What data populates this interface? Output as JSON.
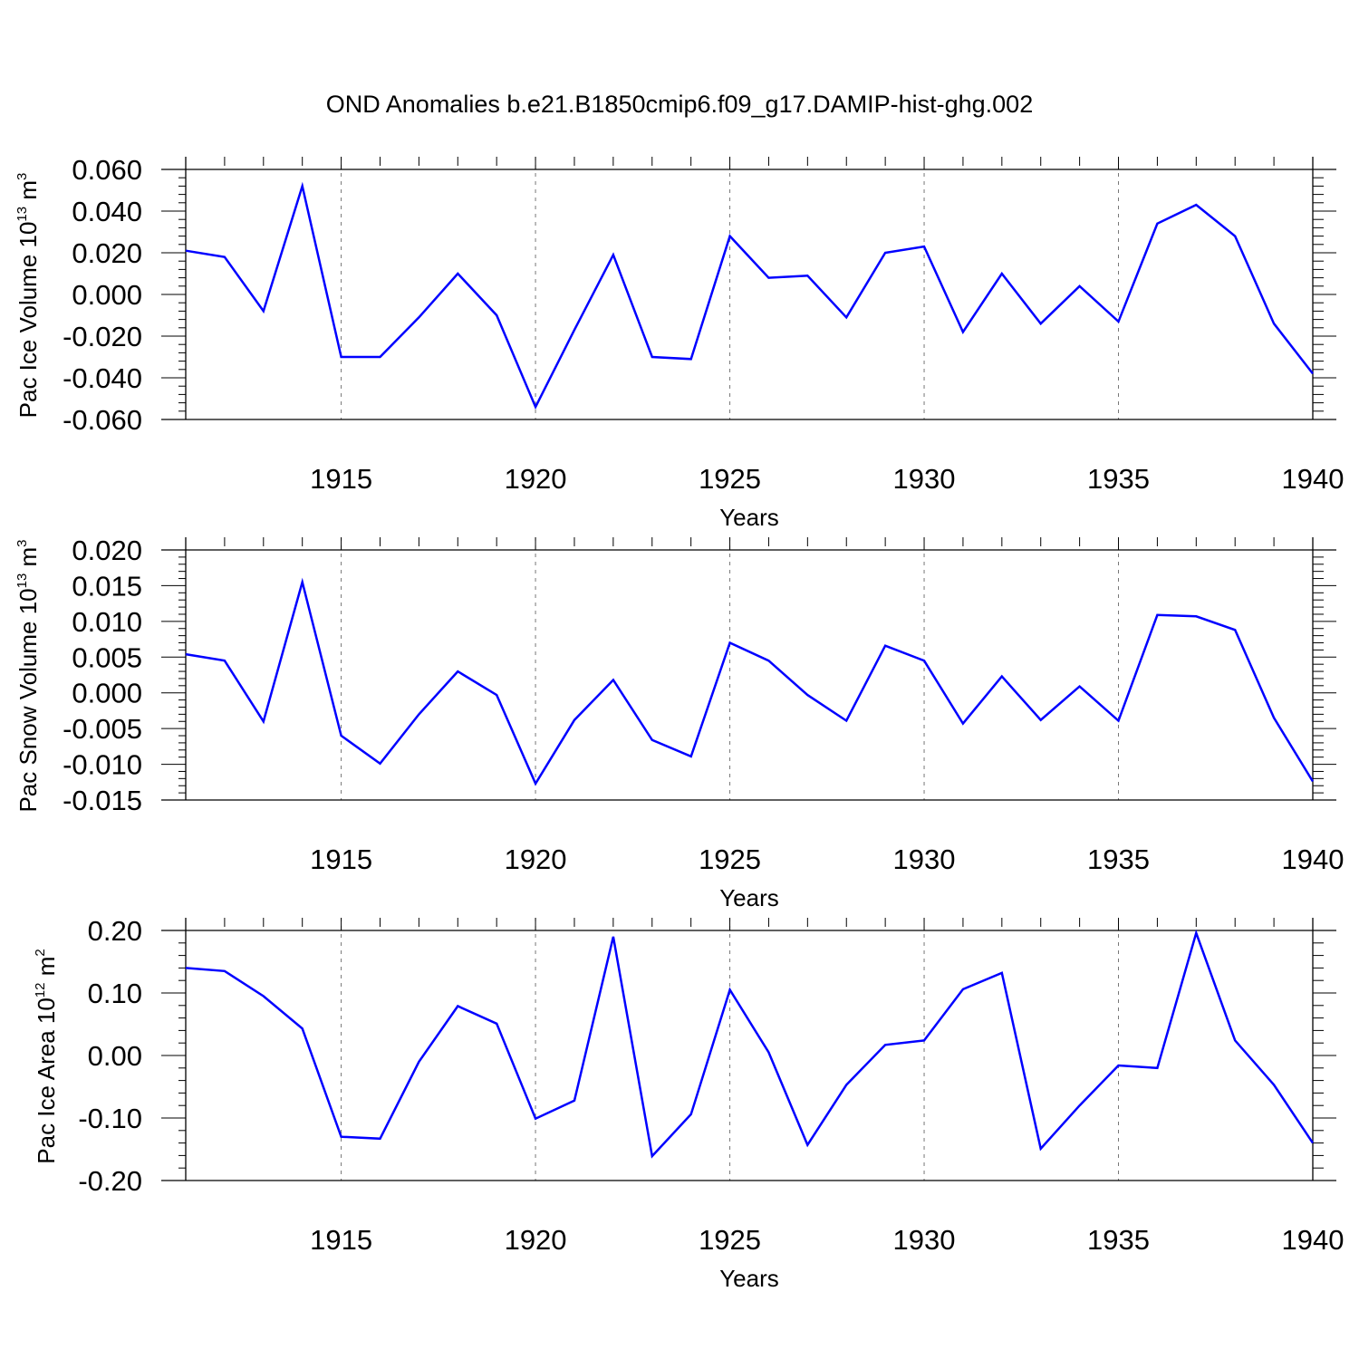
{
  "title": "OND Anomalies b.e21.B1850cmip6.f09_g17.DAMIP-hist-ghg.002",
  "chart_data": [
    {
      "type": "line",
      "ylabel": "Pac Ice Volume 10",
      "ylabel_exp": "13",
      "ylabel_unit": " m",
      "ylabel_unit_exp": "3",
      "xlabel": "Years",
      "xlim": [
        1911,
        1940
      ],
      "ylim": [
        -0.06,
        0.06
      ],
      "yticks": [
        -0.06,
        -0.04,
        -0.02,
        0.0,
        0.02,
        0.04,
        0.06
      ],
      "ytick_labels": [
        "-0.060",
        "-0.040",
        "-0.020",
        "0.000",
        "0.020",
        "0.040",
        "0.060"
      ],
      "xticks": [
        1915,
        1920,
        1925,
        1930,
        1935,
        1940
      ],
      "xtick_labels": [
        "1915",
        "1920",
        "1925",
        "1930",
        "1935",
        "1940"
      ],
      "gridlines_x": [
        1915,
        1920,
        1925,
        1930,
        1935
      ],
      "line_color": "#0000ff",
      "x": [
        1911,
        1912,
        1913,
        1914,
        1915,
        1916,
        1917,
        1918,
        1919,
        1920,
        1921,
        1922,
        1923,
        1924,
        1925,
        1926,
        1927,
        1928,
        1929,
        1930,
        1931,
        1932,
        1933,
        1934,
        1935,
        1936,
        1937,
        1938,
        1939,
        1940
      ],
      "values": [
        0.021,
        0.018,
        -0.008,
        0.052,
        -0.03,
        -0.03,
        -0.011,
        0.01,
        -0.01,
        -0.054,
        -0.017,
        0.019,
        -0.03,
        -0.031,
        0.028,
        0.008,
        0.009,
        -0.011,
        0.02,
        0.023,
        -0.018,
        0.01,
        -0.014,
        0.004,
        -0.013,
        0.034,
        0.043,
        0.028,
        -0.014,
        -0.038
      ]
    },
    {
      "type": "line",
      "ylabel": "Pac Snow Volume 10",
      "ylabel_exp": "13",
      "ylabel_unit": " m",
      "ylabel_unit_exp": "3",
      "xlabel": "Years",
      "xlim": [
        1911,
        1940
      ],
      "ylim": [
        -0.015,
        0.02
      ],
      "yticks": [
        -0.015,
        -0.01,
        -0.005,
        0.0,
        0.005,
        0.01,
        0.015,
        0.02
      ],
      "ytick_labels": [
        "-0.015",
        "-0.010",
        "-0.005",
        "0.000",
        "0.005",
        "0.010",
        "0.015",
        "0.020"
      ],
      "xticks": [
        1915,
        1920,
        1925,
        1930,
        1935,
        1940
      ],
      "xtick_labels": [
        "1915",
        "1920",
        "1925",
        "1930",
        "1935",
        "1940"
      ],
      "gridlines_x": [
        1915,
        1920,
        1925,
        1930,
        1935
      ],
      "line_color": "#0000ff",
      "x": [
        1911,
        1912,
        1913,
        1914,
        1915,
        1916,
        1917,
        1918,
        1919,
        1920,
        1921,
        1922,
        1923,
        1924,
        1925,
        1926,
        1927,
        1928,
        1929,
        1930,
        1931,
        1932,
        1933,
        1934,
        1935,
        1936,
        1937,
        1938,
        1939,
        1940
      ],
      "values": [
        0.0054,
        0.0045,
        -0.004,
        0.0155,
        -0.006,
        -0.0099,
        -0.003,
        0.003,
        -0.0003,
        -0.0127,
        -0.0038,
        0.0018,
        -0.0066,
        -0.0089,
        0.007,
        0.0045,
        -0.0003,
        -0.0039,
        0.0066,
        0.0045,
        -0.0043,
        0.0023,
        -0.0038,
        0.0009,
        -0.0039,
        0.0109,
        0.0107,
        0.0088,
        -0.0035,
        -0.0124
      ]
    },
    {
      "type": "line",
      "ylabel": "Pac Ice Area 10",
      "ylabel_exp": "12",
      "ylabel_unit": " m",
      "ylabel_unit_exp": "2",
      "xlabel": "Years",
      "xlim": [
        1911,
        1940
      ],
      "ylim": [
        -0.2,
        0.2
      ],
      "yticks": [
        -0.2,
        -0.1,
        0.0,
        0.1,
        0.2
      ],
      "ytick_labels": [
        "-0.20",
        "-0.10",
        "0.00",
        "0.10",
        "0.20"
      ],
      "xticks": [
        1915,
        1920,
        1925,
        1930,
        1935,
        1940
      ],
      "xtick_labels": [
        "1915",
        "1920",
        "1925",
        "1930",
        "1935",
        "1940"
      ],
      "gridlines_x": [
        1915,
        1920,
        1925,
        1930,
        1935
      ],
      "line_color": "#0000ff",
      "x": [
        1911,
        1912,
        1913,
        1914,
        1915,
        1916,
        1917,
        1918,
        1919,
        1920,
        1921,
        1922,
        1923,
        1924,
        1925,
        1926,
        1927,
        1928,
        1929,
        1930,
        1931,
        1932,
        1933,
        1934,
        1935,
        1936,
        1937,
        1938,
        1939,
        1940
      ],
      "values": [
        0.14,
        0.135,
        0.095,
        0.043,
        -0.13,
        -0.133,
        -0.01,
        0.079,
        0.051,
        -0.101,
        -0.072,
        0.19,
        -0.161,
        -0.094,
        0.105,
        0.005,
        -0.143,
        -0.047,
        0.017,
        0.024,
        0.106,
        0.132,
        -0.149,
        -0.08,
        -0.016,
        -0.02,
        0.196,
        0.024,
        -0.047,
        -0.14
      ]
    }
  ]
}
